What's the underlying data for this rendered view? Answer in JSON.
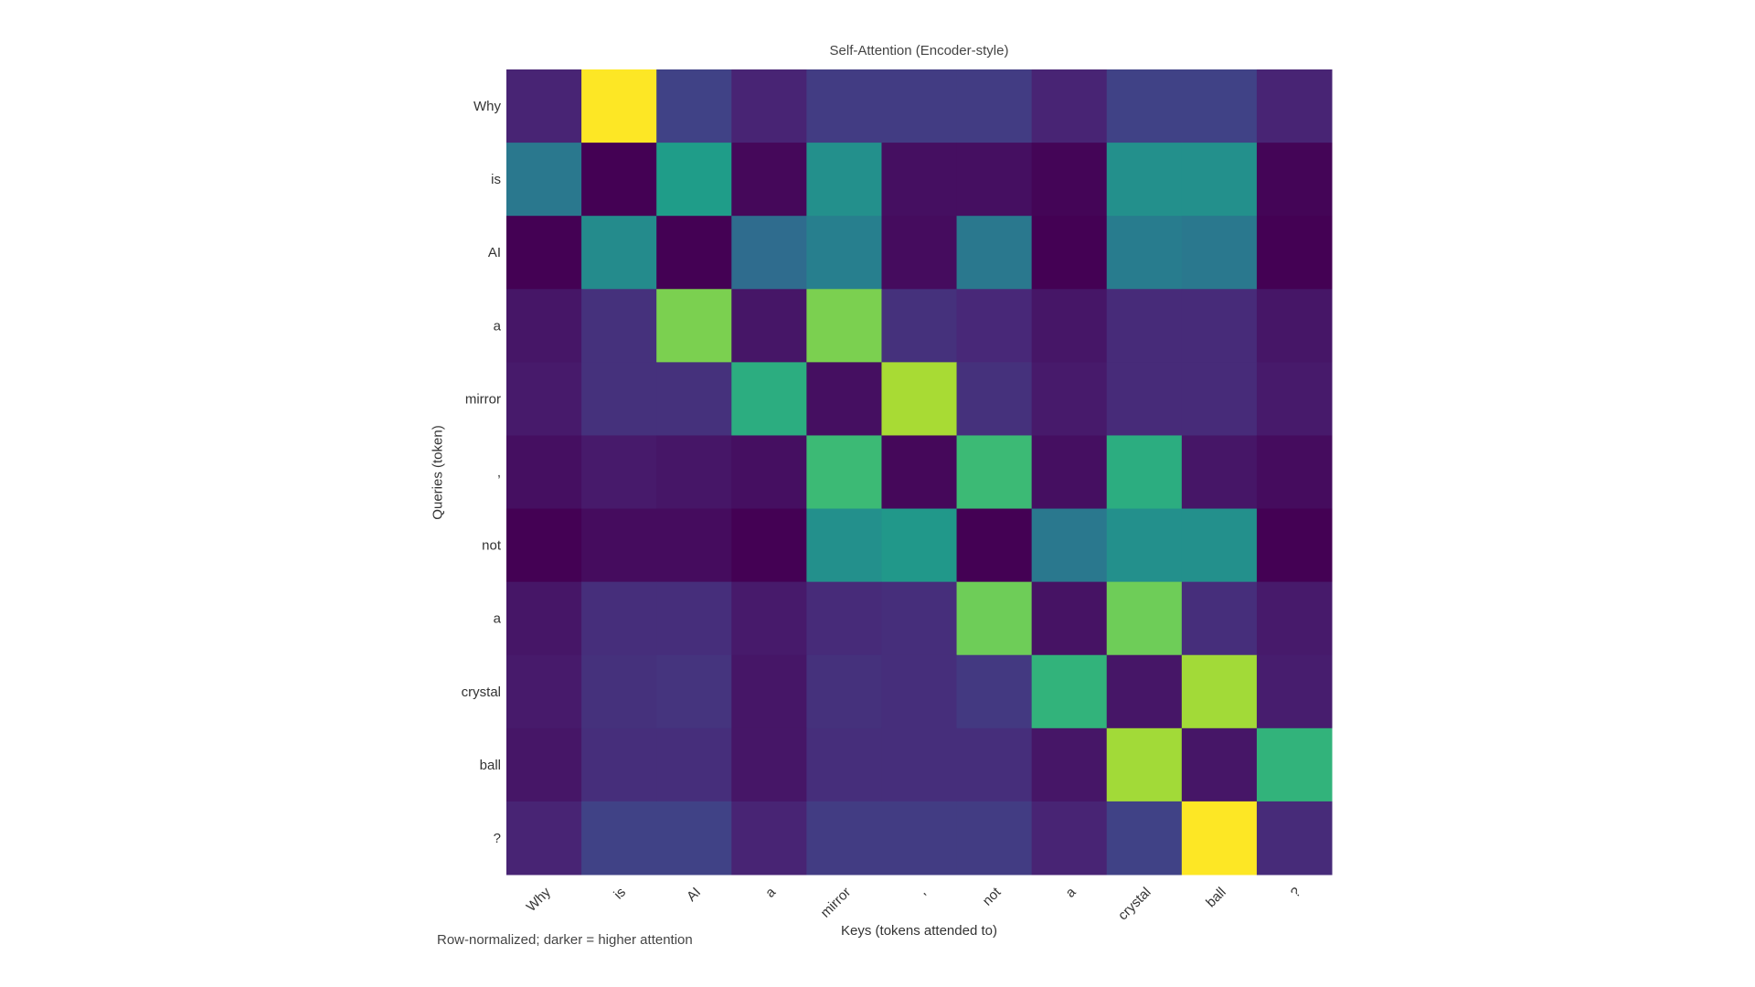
{
  "chart_data": {
    "type": "heatmap",
    "title": "Self-Attention (Encoder-style)",
    "xlabel": "Keys (tokens attended to)",
    "ylabel": "Queries (token)",
    "x_tokens": [
      "Why",
      "is",
      "AI",
      "a",
      "mirror",
      ",",
      "not",
      "a",
      "crystal",
      "ball",
      "?"
    ],
    "y_tokens": [
      "Why",
      "is",
      "AI",
      "a",
      "mirror",
      ",",
      "not",
      "a",
      "crystal",
      "ball",
      "?"
    ],
    "colorscale": "viridis",
    "note": "Row-normalized; darker = higher attention",
    "values": [
      [
        0.1,
        1.0,
        0.2,
        0.1,
        0.18,
        0.18,
        0.18,
        0.1,
        0.2,
        0.2,
        0.1
      ],
      [
        0.4,
        0.0,
        0.55,
        0.02,
        0.5,
        0.04,
        0.04,
        0.01,
        0.5,
        0.5,
        0.01
      ],
      [
        0.0,
        0.48,
        0.0,
        0.35,
        0.43,
        0.03,
        0.4,
        0.0,
        0.42,
        0.4,
        0.0
      ],
      [
        0.06,
        0.14,
        0.8,
        0.06,
        0.8,
        0.14,
        0.11,
        0.06,
        0.12,
        0.12,
        0.06
      ],
      [
        0.07,
        0.14,
        0.14,
        0.62,
        0.04,
        0.87,
        0.14,
        0.07,
        0.12,
        0.12,
        0.07
      ],
      [
        0.04,
        0.07,
        0.06,
        0.04,
        0.68,
        0.02,
        0.68,
        0.04,
        0.62,
        0.06,
        0.03
      ],
      [
        0.0,
        0.03,
        0.03,
        0.0,
        0.5,
        0.53,
        0.0,
        0.4,
        0.5,
        0.5,
        0.0
      ],
      [
        0.06,
        0.13,
        0.13,
        0.07,
        0.12,
        0.13,
        0.78,
        0.05,
        0.78,
        0.13,
        0.07
      ],
      [
        0.07,
        0.14,
        0.15,
        0.06,
        0.14,
        0.13,
        0.17,
        0.65,
        0.06,
        0.86,
        0.08
      ],
      [
        0.06,
        0.13,
        0.13,
        0.06,
        0.13,
        0.13,
        0.13,
        0.06,
        0.86,
        0.06,
        0.65
      ],
      [
        0.1,
        0.2,
        0.2,
        0.1,
        0.18,
        0.18,
        0.18,
        0.1,
        0.2,
        1.0,
        0.12
      ]
    ]
  }
}
